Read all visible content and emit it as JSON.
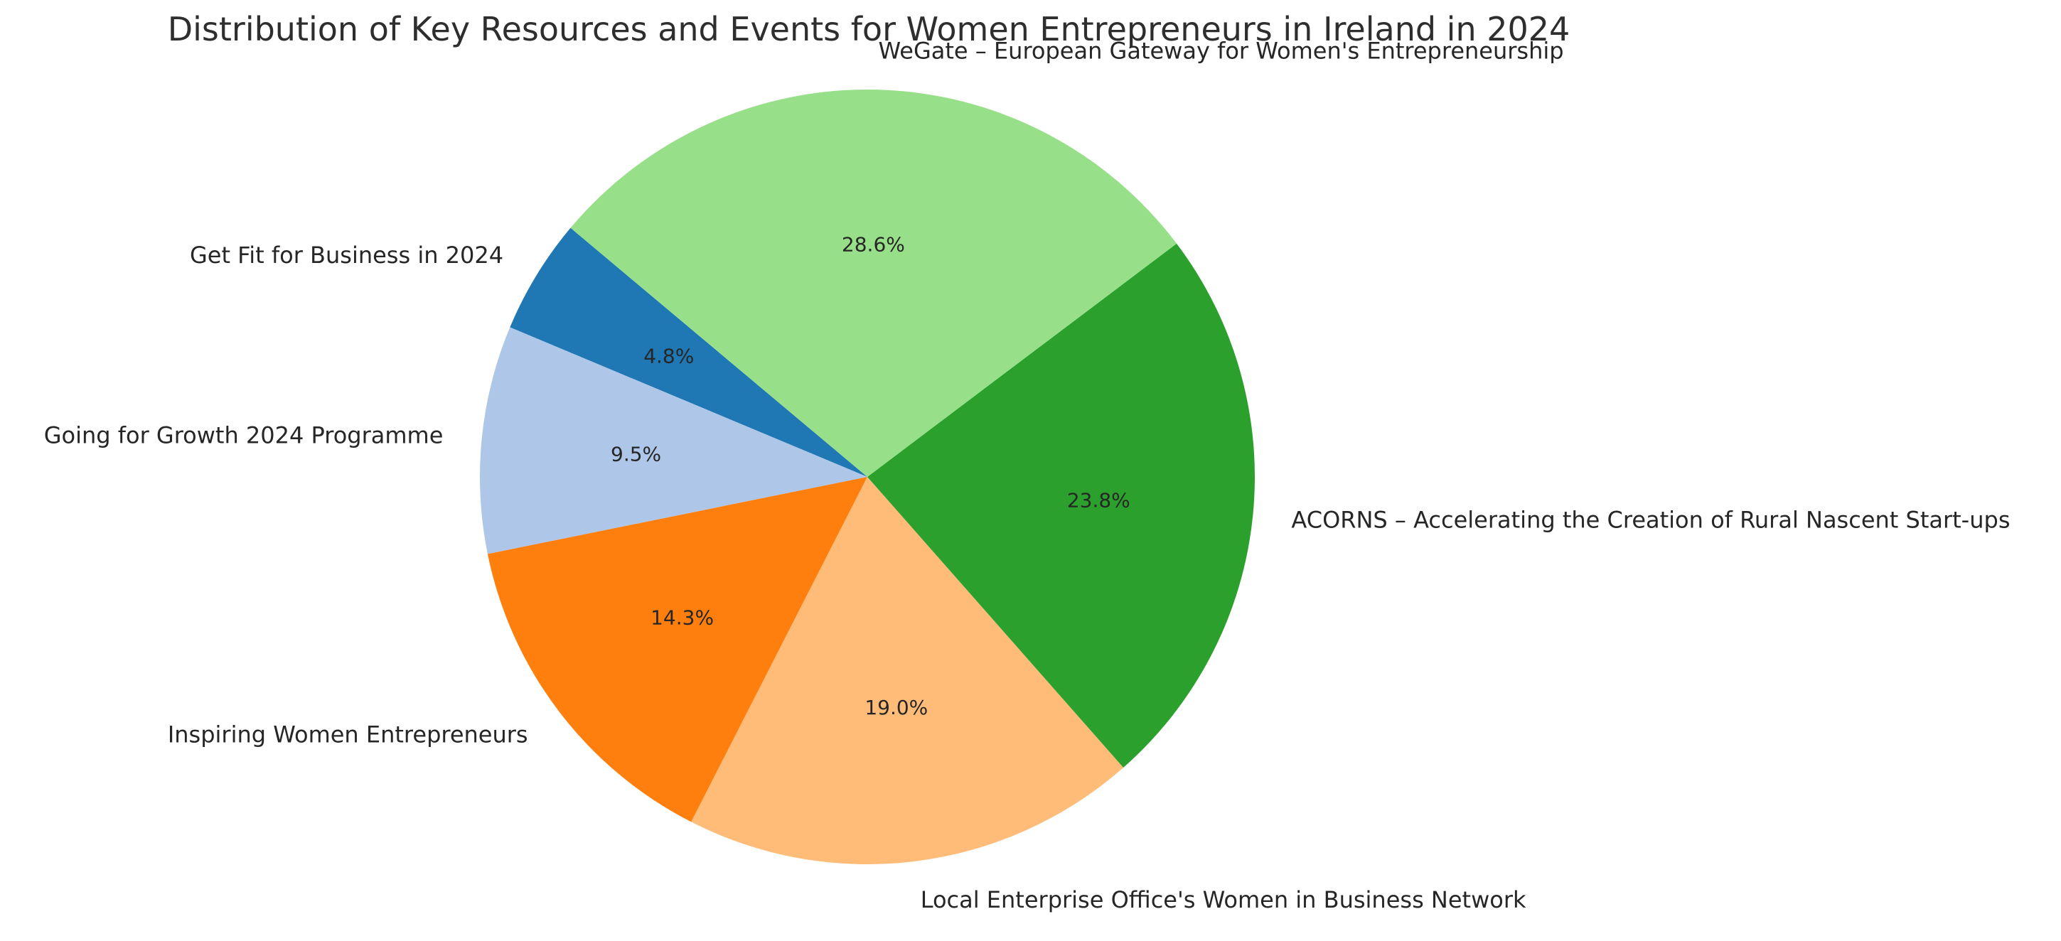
{
  "background_color": "#ffffff",
  "text_color": "#262626",
  "chart_data": {
    "type": "pie",
    "title": "Distribution of Key Resources and Events for Women Entrepreneurs in Ireland in 2024",
    "labels": [
      "Get Fit for Business in 2024",
      "Going for Growth 2024 Programme",
      "Inspiring Women Entrepreneurs",
      "Local Enterprise Office's Women in Business Network",
      "ACORNS – Accelerating the Creation of Rural Nascent Start-ups",
      "WeGate – European Gateway for Women's Entrepreneurship"
    ],
    "values": [
      4.8,
      9.5,
      14.3,
      19.0,
      23.8,
      28.6
    ],
    "percent_labels": [
      "4.8%",
      "9.5%",
      "14.3%",
      "19.0%",
      "23.8%",
      "28.6%"
    ],
    "colors": [
      "#1f77b4",
      "#aec7e8",
      "#ff7f0e",
      "#ffbb78",
      "#2ca02c",
      "#98df8a"
    ],
    "start_angle": 140,
    "direction": "counterclockwise",
    "label_distance": 1.1,
    "pct_distance": 0.6,
    "legend": "none"
  }
}
